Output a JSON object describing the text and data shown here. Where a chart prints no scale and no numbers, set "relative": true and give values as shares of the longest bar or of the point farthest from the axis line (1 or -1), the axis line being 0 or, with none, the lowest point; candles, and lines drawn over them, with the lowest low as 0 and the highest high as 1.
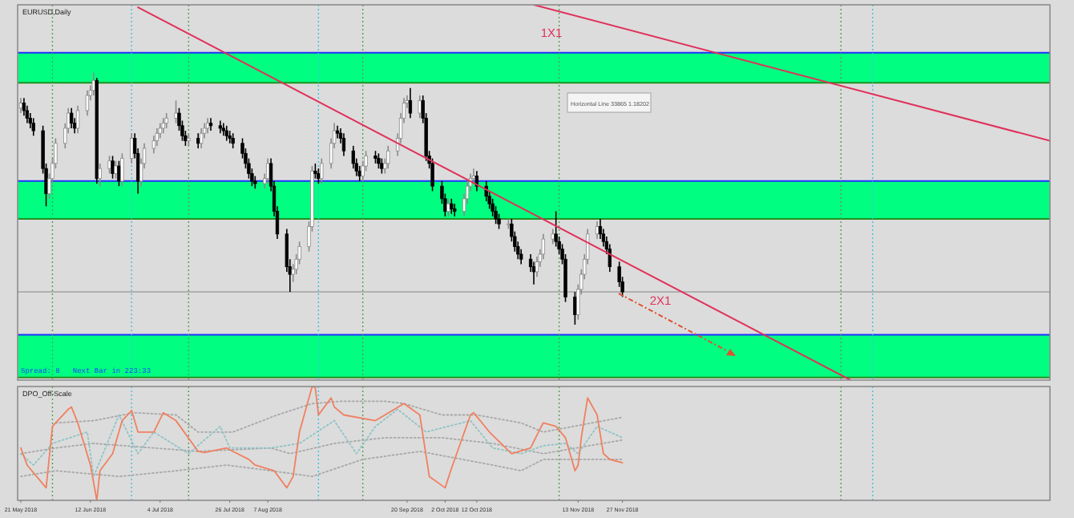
{
  "chart_data": [
    {
      "type": "candlestick",
      "title": "EURUSD,Daily",
      "relative": true,
      "tick_labels": false,
      "xlim": [
        "2018-05-20",
        "2019-04-11"
      ],
      "x": [
        "2018-05-21",
        "2018-05-22",
        "2018-05-23",
        "2018-05-24",
        "2018-05-25",
        "2018-05-28",
        "2018-05-29",
        "2018-05-30",
        "2018-05-31",
        "2018-06-01",
        "2018-06-04",
        "2018-06-05",
        "2018-06-06",
        "2018-06-07",
        "2018-06-08",
        "2018-06-11",
        "2018-06-12",
        "2018-06-13",
        "2018-06-14",
        "2018-06-15",
        "2018-06-18",
        "2018-06-19",
        "2018-06-20",
        "2018-06-21",
        "2018-06-22",
        "2018-06-25",
        "2018-06-26",
        "2018-06-27",
        "2018-06-28",
        "2018-06-29",
        "2018-07-02",
        "2018-07-03",
        "2018-07-04",
        "2018-07-05",
        "2018-07-06",
        "2018-07-09",
        "2018-07-10",
        "2018-07-11",
        "2018-07-12",
        "2018-07-13",
        "2018-07-16",
        "2018-07-17",
        "2018-07-18",
        "2018-07-19",
        "2018-07-20",
        "2018-07-23",
        "2018-07-24",
        "2018-07-25",
        "2018-07-26",
        "2018-07-27",
        "2018-07-30",
        "2018-07-31",
        "2018-08-01",
        "2018-08-02",
        "2018-08-03",
        "2018-08-06",
        "2018-08-07",
        "2018-08-08",
        "2018-08-09",
        "2018-08-10",
        "2018-08-13",
        "2018-08-14",
        "2018-08-15",
        "2018-08-16",
        "2018-08-17",
        "2018-08-20",
        "2018-08-21",
        "2018-08-22",
        "2018-08-23",
        "2018-08-24",
        "2018-08-27",
        "2018-08-28",
        "2018-08-29",
        "2018-08-30",
        "2018-08-31",
        "2018-09-03",
        "2018-09-04",
        "2018-09-05",
        "2018-09-06",
        "2018-09-07",
        "2018-09-10",
        "2018-09-11",
        "2018-09-12",
        "2018-09-13",
        "2018-09-14",
        "2018-09-17",
        "2018-09-18",
        "2018-09-19",
        "2018-09-20",
        "2018-09-21",
        "2018-09-24",
        "2018-09-25",
        "2018-09-26",
        "2018-09-27",
        "2018-09-28",
        "2018-10-01",
        "2018-10-02",
        "2018-10-03",
        "2018-10-04",
        "2018-10-05",
        "2018-10-08",
        "2018-10-09",
        "2018-10-10",
        "2018-10-11",
        "2018-10-12",
        "2018-10-15",
        "2018-10-16",
        "2018-10-17",
        "2018-10-18",
        "2018-10-19",
        "2018-10-22",
        "2018-10-23",
        "2018-10-24",
        "2018-10-25",
        "2018-10-26",
        "2018-10-29",
        "2018-10-30",
        "2018-10-31",
        "2018-11-01",
        "2018-11-02",
        "2018-11-05",
        "2018-11-06",
        "2018-11-07",
        "2018-11-08",
        "2018-11-09",
        "2018-11-12",
        "2018-11-13",
        "2018-11-14",
        "2018-11-15",
        "2018-11-16",
        "2018-11-19",
        "2018-11-20",
        "2018-11-21",
        "2018-11-22",
        "2018-11-23",
        "2018-11-26",
        "2018-11-27"
      ],
      "ohlc": [
        [
          0.86,
          0.9,
          0.84,
          0.88
        ],
        [
          0.88,
          0.9,
          0.83,
          0.85
        ],
        [
          0.85,
          0.87,
          0.8,
          0.82
        ],
        [
          0.82,
          0.84,
          0.78,
          0.8
        ],
        [
          0.8,
          0.82,
          0.75,
          0.77
        ],
        [
          0.77,
          0.79,
          0.6,
          0.62
        ],
        [
          0.62,
          0.64,
          0.47,
          0.52
        ],
        [
          0.52,
          0.6,
          0.5,
          0.58
        ],
        [
          0.58,
          0.66,
          0.56,
          0.64
        ],
        [
          0.64,
          0.74,
          0.62,
          0.72
        ],
        [
          0.72,
          0.8,
          0.7,
          0.78
        ],
        [
          0.78,
          0.86,
          0.76,
          0.84
        ],
        [
          0.84,
          0.86,
          0.78,
          0.8
        ],
        [
          0.8,
          0.82,
          0.76,
          0.78
        ],
        [
          0.78,
          0.87,
          0.76,
          0.85
        ],
        [
          0.85,
          0.93,
          0.83,
          0.91
        ],
        [
          0.91,
          0.95,
          0.89,
          0.93
        ],
        [
          0.93,
          1,
          0.91,
          0.97
        ],
        [
          0.97,
          0.98,
          0.56,
          0.58
        ],
        [
          0.58,
          0.64,
          0.55,
          0.62
        ],
        [
          0.62,
          0.67,
          0.6,
          0.65
        ],
        [
          0.65,
          0.67,
          0.58,
          0.6
        ],
        [
          0.6,
          0.65,
          0.58,
          0.63
        ],
        [
          0.63,
          0.65,
          0.55,
          0.57
        ],
        [
          0.57,
          0.68,
          0.55,
          0.66
        ],
        [
          0.66,
          0.76,
          0.64,
          0.74
        ],
        [
          0.74,
          0.76,
          0.66,
          0.68
        ],
        [
          0.68,
          0.7,
          0.52,
          0.57
        ],
        [
          0.57,
          0.66,
          0.55,
          0.64
        ],
        [
          0.64,
          0.72,
          0.62,
          0.7
        ],
        [
          0.7,
          0.75,
          0.68,
          0.73
        ],
        [
          0.73,
          0.78,
          0.71,
          0.76
        ],
        [
          0.76,
          0.8,
          0.74,
          0.78
        ],
        [
          0.78,
          0.82,
          0.76,
          0.8
        ],
        [
          0.8,
          0.84,
          0.78,
          0.82
        ],
        [
          0.82,
          0.89,
          0.8,
          0.84
        ],
        [
          0.84,
          0.86,
          0.77,
          0.79
        ],
        [
          0.79,
          0.81,
          0.73,
          0.75
        ],
        [
          0.75,
          0.77,
          0.71,
          0.73
        ],
        [
          0.73,
          0.76,
          0.71,
          0.74
        ],
        [
          0.74,
          0.76,
          0.7,
          0.72
        ],
        [
          0.72,
          0.78,
          0.7,
          0.76
        ],
        [
          0.76,
          0.8,
          0.74,
          0.78
        ],
        [
          0.78,
          0.82,
          0.76,
          0.8
        ],
        [
          0.8,
          0.82,
          0.77,
          0.79
        ],
        [
          0.79,
          0.81,
          0.76,
          0.78
        ],
        [
          0.78,
          0.8,
          0.75,
          0.77
        ],
        [
          0.77,
          0.79,
          0.73,
          0.75
        ],
        [
          0.75,
          0.77,
          0.72,
          0.74
        ],
        [
          0.74,
          0.76,
          0.7,
          0.72
        ],
        [
          0.72,
          0.74,
          0.66,
          0.68
        ],
        [
          0.68,
          0.7,
          0.62,
          0.64
        ],
        [
          0.64,
          0.66,
          0.58,
          0.6
        ],
        [
          0.6,
          0.62,
          0.55,
          0.57
        ],
        [
          0.57,
          0.59,
          0.54,
          0.56
        ],
        [
          0.56,
          0.6,
          0.54,
          0.58
        ],
        [
          0.58,
          0.66,
          0.56,
          0.64
        ],
        [
          0.64,
          0.66,
          0.53,
          0.55
        ],
        [
          0.55,
          0.57,
          0.43,
          0.45
        ],
        [
          0.45,
          0.47,
          0.34,
          0.36
        ],
        [
          0.36,
          0.38,
          0.21,
          0.23
        ],
        [
          0.23,
          0.26,
          0.13,
          0.2
        ],
        [
          0.2,
          0.24,
          0.17,
          0.22
        ],
        [
          0.22,
          0.28,
          0.2,
          0.26
        ],
        [
          0.26,
          0.33,
          0.24,
          0.31
        ],
        [
          0.31,
          0.41,
          0.29,
          0.39
        ],
        [
          0.39,
          0.63,
          0.37,
          0.61
        ],
        [
          0.61,
          0.64,
          0.58,
          0.6
        ],
        [
          0.6,
          0.62,
          0.56,
          0.58
        ],
        [
          0.58,
          0.66,
          0.56,
          0.64
        ],
        [
          0.64,
          0.74,
          0.62,
          0.72
        ],
        [
          0.72,
          0.8,
          0.7,
          0.77
        ],
        [
          0.77,
          0.79,
          0.74,
          0.76
        ],
        [
          0.76,
          0.78,
          0.72,
          0.74
        ],
        [
          0.74,
          0.76,
          0.67,
          0.69
        ],
        [
          0.69,
          0.71,
          0.62,
          0.64
        ],
        [
          0.64,
          0.66,
          0.59,
          0.61
        ],
        [
          0.61,
          0.63,
          0.57,
          0.59
        ],
        [
          0.59,
          0.65,
          0.57,
          0.63
        ],
        [
          0.63,
          0.69,
          0.61,
          0.67
        ],
        [
          0.67,
          0.69,
          0.64,
          0.66
        ],
        [
          0.66,
          0.68,
          0.62,
          0.64
        ],
        [
          0.64,
          0.66,
          0.6,
          0.62
        ],
        [
          0.62,
          0.66,
          0.6,
          0.64
        ],
        [
          0.64,
          0.71,
          0.62,
          0.69
        ],
        [
          0.69,
          0.76,
          0.67,
          0.74
        ],
        [
          0.74,
          0.84,
          0.72,
          0.82
        ],
        [
          0.82,
          0.9,
          0.8,
          0.88
        ],
        [
          0.88,
          0.91,
          0.86,
          0.89
        ],
        [
          0.89,
          0.94,
          0.82,
          0.84
        ],
        [
          0.84,
          0.91,
          0.82,
          0.89
        ],
        [
          0.89,
          0.91,
          0.8,
          0.82
        ],
        [
          0.82,
          0.84,
          0.65,
          0.67
        ],
        [
          0.67,
          0.69,
          0.62,
          0.64
        ],
        [
          0.64,
          0.66,
          0.53,
          0.55
        ],
        [
          0.55,
          0.57,
          0.48,
          0.5
        ],
        [
          0.5,
          0.52,
          0.43,
          0.45
        ],
        [
          0.45,
          0.5,
          0.43,
          0.48
        ],
        [
          0.48,
          0.5,
          0.44,
          0.46
        ],
        [
          0.46,
          0.48,
          0.43,
          0.45
        ],
        [
          0.45,
          0.52,
          0.43,
          0.5
        ],
        [
          0.5,
          0.57,
          0.48,
          0.55
        ],
        [
          0.55,
          0.6,
          0.53,
          0.58
        ],
        [
          0.58,
          0.62,
          0.56,
          0.59
        ],
        [
          0.59,
          0.61,
          0.53,
          0.55
        ],
        [
          0.55,
          0.57,
          0.49,
          0.51
        ],
        [
          0.51,
          0.53,
          0.46,
          0.48
        ],
        [
          0.48,
          0.5,
          0.43,
          0.45
        ],
        [
          0.45,
          0.47,
          0.4,
          0.42
        ],
        [
          0.42,
          0.44,
          0.38,
          0.4
        ],
        [
          0.4,
          0.42,
          0.38,
          0.4
        ],
        [
          0.4,
          0.42,
          0.33,
          0.35
        ],
        [
          0.35,
          0.37,
          0.29,
          0.31
        ],
        [
          0.31,
          0.33,
          0.26,
          0.28
        ],
        [
          0.28,
          0.3,
          0.24,
          0.26
        ],
        [
          0.26,
          0.28,
          0.21,
          0.23
        ],
        [
          0.23,
          0.25,
          0.16,
          0.21
        ],
        [
          0.21,
          0.27,
          0.19,
          0.25
        ],
        [
          0.25,
          0.3,
          0.23,
          0.28
        ],
        [
          0.28,
          0.36,
          0.26,
          0.34
        ],
        [
          0.34,
          0.38,
          0.32,
          0.36
        ],
        [
          0.36,
          0.45,
          0.31,
          0.33
        ],
        [
          0.33,
          0.35,
          0.28,
          0.3
        ],
        [
          0.3,
          0.32,
          0.24,
          0.26
        ],
        [
          0.26,
          0.28,
          0.09,
          0.11
        ],
        [
          0.11,
          0.13,
          0,
          0.04
        ],
        [
          0.04,
          0.16,
          0.02,
          0.14
        ],
        [
          0.14,
          0.22,
          0.12,
          0.2
        ],
        [
          0.2,
          0.28,
          0.18,
          0.26
        ],
        [
          0.26,
          0.38,
          0.24,
          0.36
        ],
        [
          0.36,
          0.41,
          0.34,
          0.39
        ],
        [
          0.39,
          0.42,
          0.34,
          0.36
        ],
        [
          0.36,
          0.38,
          0.31,
          0.33
        ],
        [
          0.33,
          0.35,
          0.28,
          0.3
        ],
        [
          0.3,
          0.32,
          0.21,
          0.23
        ],
        [
          0.23,
          0.25,
          0.15,
          0.17
        ],
        [
          0.17,
          0.19,
          0.11,
          0.13
        ]
      ],
      "series": [
        {
          "type": "line",
          "color": "#e0305a",
          "x": [
            "2018-06-27",
            "2019-02-07"
          ],
          "values": [
            1.26,
            -0.22
          ]
        },
        {
          "type": "line",
          "color": "#e0305a",
          "x": [
            "2018-10-30",
            "2019-04-11"
          ],
          "values": [
            1.27,
            0.73
          ]
        }
      ],
      "bands": [
        {
          "axis": "y",
          "from": 0.96,
          "to": 1.08,
          "color": "#00ff80"
        },
        {
          "axis": "y",
          "from": 0.42,
          "to": 0.57,
          "color": "#00ff80"
        },
        {
          "axis": "y",
          "from": -0.21,
          "to": -0.04,
          "color": "#00ff80"
        }
      ],
      "ref_lines": [
        {
          "axis": "y",
          "value": 1.08,
          "color": "#2030ff"
        },
        {
          "axis": "y",
          "value": 0.96,
          "color": "#209020"
        },
        {
          "axis": "y",
          "value": 0.57,
          "color": "#2030ff"
        },
        {
          "axis": "y",
          "value": 0.42,
          "color": "#209020"
        },
        {
          "axis": "y",
          "value": -0.04,
          "color": "#2030ff"
        },
        {
          "axis": "y",
          "value": -0.21,
          "color": "#209020"
        },
        {
          "axis": "y",
          "value": 0.13,
          "color": "#b0b0b0"
        },
        {
          "axis": "x",
          "value": "2018-05-31",
          "color": "#50a050",
          "line_style": "dotted"
        },
        {
          "axis": "x",
          "value": "2018-06-25",
          "color": "#40c0e0",
          "line_style": "dotted"
        },
        {
          "axis": "x",
          "value": "2018-07-13",
          "color": "#50a050",
          "line_style": "dotted"
        },
        {
          "axis": "x",
          "value": "2018-08-23",
          "color": "#40c0e0",
          "line_style": "dotted"
        },
        {
          "axis": "x",
          "value": "2018-09-06",
          "color": "#50a050",
          "line_style": "dotted"
        },
        {
          "axis": "x",
          "value": "2018-11-07",
          "color": "#50a050",
          "line_style": "dotted"
        },
        {
          "axis": "x",
          "value": "2019-02-04",
          "color": "#50a050",
          "line_style": "dotted"
        },
        {
          "axis": "x",
          "value": "2019-02-14",
          "color": "#40c0e0",
          "line_style": "dotted"
        }
      ],
      "annotations": [
        "1X1",
        "2X1",
        "Horizontal Line 33865 1.18202",
        "Spread: 8   Next Bar in 223:33"
      ]
    },
    {
      "type": "line",
      "title": "DPO_Off-Scale",
      "relative": true,
      "tick_labels": "x",
      "xlim": [
        "2018-05-20",
        "2019-04-11"
      ],
      "xticks": [
        {
          "value": "2018-05-21",
          "label": "21 May 2018"
        },
        {
          "value": "2018-06-12",
          "label": "12 Jun 2018"
        },
        {
          "value": "2018-07-04",
          "label": "4 Jul 2018"
        },
        {
          "value": "2018-07-26",
          "label": "26 Jul 2018"
        },
        {
          "value": "2018-08-07",
          "label": "7 Aug 2018"
        },
        {
          "value": "2018-09-20",
          "label": "20 Sep 2018"
        },
        {
          "value": "2018-10-02",
          "label": "2 Oct 2018"
        },
        {
          "value": "2018-10-12",
          "label": "12 Oct 2018"
        },
        {
          "value": "2018-11-13",
          "label": "13 Nov 2018"
        },
        {
          "value": "2018-11-27",
          "label": "27 Nov 2018"
        }
      ],
      "series": [
        {
          "color": "#a8a8a8",
          "line_style": "dotted",
          "x": [
            "2018-06-01",
            "2018-06-13",
            "2018-06-26",
            "2018-07-09",
            "2018-07-16",
            "2018-07-27",
            "2018-08-10",
            "2018-08-21",
            "2018-08-30",
            "2018-09-13",
            "2018-09-19",
            "2018-10-01",
            "2018-10-12",
            "2018-10-26",
            "2018-11-02",
            "2018-11-27"
          ],
          "values": [
            0.68,
            0.7,
            0.77,
            0.75,
            0.6,
            0.6,
            0.75,
            0.85,
            0.87,
            0.87,
            0.85,
            0.75,
            0.75,
            0.68,
            0.6,
            0.73
          ]
        },
        {
          "color": "#a8a8a8",
          "line_style": "dotted",
          "x": [
            "2018-05-21",
            "2018-06-01",
            "2018-06-13",
            "2018-07-02",
            "2018-07-16",
            "2018-08-08",
            "2018-08-14",
            "2018-08-28",
            "2018-09-13",
            "2018-10-01",
            "2018-10-17",
            "2018-11-02",
            "2018-11-27"
          ],
          "values": [
            0.41,
            0.46,
            0.5,
            0.46,
            0.43,
            0.46,
            0.41,
            0.5,
            0.55,
            0.55,
            0.5,
            0.41,
            0.53
          ]
        },
        {
          "color": "#a8a8a8",
          "line_style": "dotted",
          "x": [
            "2018-05-21",
            "2018-06-01",
            "2018-06-21",
            "2018-07-09",
            "2018-07-25",
            "2018-08-08",
            "2018-08-21",
            "2018-09-06",
            "2018-09-24",
            "2018-10-17",
            "2018-10-26",
            "2018-11-02",
            "2018-11-27"
          ],
          "values": [
            0.21,
            0.26,
            0.21,
            0.26,
            0.31,
            0.26,
            0.21,
            0.36,
            0.43,
            0.31,
            0.26,
            0.36,
            0.36
          ]
        },
        {
          "color": "#90c4c4",
          "line_style": "dotted",
          "x": [
            "2018-05-21",
            "2018-05-25",
            "2018-05-31",
            "2018-06-11",
            "2018-06-13",
            "2018-06-21",
            "2018-06-27",
            "2018-07-02",
            "2018-07-13",
            "2018-07-23",
            "2018-07-26",
            "2018-08-08",
            "2018-08-17",
            "2018-08-28",
            "2018-09-04",
            "2018-09-10",
            "2018-09-17",
            "2018-09-26",
            "2018-10-10",
            "2018-10-17",
            "2018-10-26",
            "2018-11-02",
            "2018-11-09",
            "2018-11-13",
            "2018-11-19",
            "2018-11-27"
          ],
          "values": [
            0.41,
            0.31,
            0.5,
            0.6,
            0.21,
            0.75,
            0.41,
            0.6,
            0.41,
            0.65,
            0.46,
            0.46,
            0.5,
            0.7,
            0.41,
            0.65,
            0.8,
            0.6,
            0.7,
            0.46,
            0.41,
            0.48,
            0.5,
            0.41,
            0.65,
            0.55
          ]
        },
        {
          "color": "#f08060",
          "line_style": "solid",
          "x": [
            "2018-05-21",
            "2018-05-23",
            "2018-05-29",
            "2018-05-31",
            "2018-06-05",
            "2018-06-06",
            "2018-06-08",
            "2018-06-12",
            "2018-06-14",
            "2018-06-15",
            "2018-06-19",
            "2018-06-22",
            "2018-06-25",
            "2018-06-27",
            "2018-07-02",
            "2018-07-05",
            "2018-07-09",
            "2018-07-16",
            "2018-07-18",
            "2018-07-25",
            "2018-07-27",
            "2018-08-01",
            "2018-08-03",
            "2018-08-09",
            "2018-08-13",
            "2018-08-15",
            "2018-08-17",
            "2018-08-21",
            "2018-08-22",
            "2018-08-23",
            "2018-08-27",
            "2018-08-28",
            "2018-08-31",
            "2018-09-10",
            "2018-09-19",
            "2018-09-24",
            "2018-09-27",
            "2018-10-02",
            "2018-10-04",
            "2018-10-10",
            "2018-10-11",
            "2018-10-16",
            "2018-10-23",
            "2018-10-29",
            "2018-11-01",
            "2018-11-02",
            "2018-11-06",
            "2018-11-09",
            "2018-11-12",
            "2018-11-13",
            "2018-11-14",
            "2018-11-16",
            "2018-11-19",
            "2018-11-21",
            "2018-11-23",
            "2018-11-27"
          ],
          "values": [
            0.46,
            0.31,
            0.11,
            0.65,
            0.8,
            0.82,
            0.68,
            0.31,
            0,
            0.26,
            0.41,
            0.7,
            0.79,
            0.6,
            0.6,
            0.77,
            0.7,
            0.43,
            0.42,
            0.46,
            0.43,
            0.36,
            0.31,
            0.26,
            0.11,
            0.21,
            0.6,
            1,
            0.99,
            0.75,
            0.9,
            0.82,
            0.75,
            0.7,
            0.85,
            0.75,
            0.21,
            0.11,
            0.28,
            0.75,
            0.77,
            0.6,
            0.41,
            0.46,
            0.63,
            0.68,
            0.65,
            0.55,
            0.26,
            0.31,
            0.55,
            0.9,
            0.75,
            0.41,
            0.36,
            0.33
          ]
        }
      ],
      "ref_lines": [
        {
          "axis": "x",
          "value": "2018-05-31",
          "color": "#50a050",
          "line_style": "dotted"
        },
        {
          "axis": "x",
          "value": "2018-06-25",
          "color": "#40c0e0",
          "line_style": "dotted"
        },
        {
          "axis": "x",
          "value": "2018-07-13",
          "color": "#50a050",
          "line_style": "dotted"
        },
        {
          "axis": "x",
          "value": "2018-08-23",
          "color": "#40c0e0",
          "line_style": "dotted"
        },
        {
          "axis": "x",
          "value": "2018-09-06",
          "color": "#50a050",
          "line_style": "dotted"
        },
        {
          "axis": "x",
          "value": "2018-11-07",
          "color": "#50a050",
          "line_style": "dotted"
        },
        {
          "axis": "x",
          "value": "2019-02-04",
          "color": "#50a050",
          "line_style": "dotted"
        },
        {
          "axis": "x",
          "value": "2019-02-14",
          "color": "#40c0e0",
          "line_style": "dotted"
        }
      ]
    }
  ]
}
